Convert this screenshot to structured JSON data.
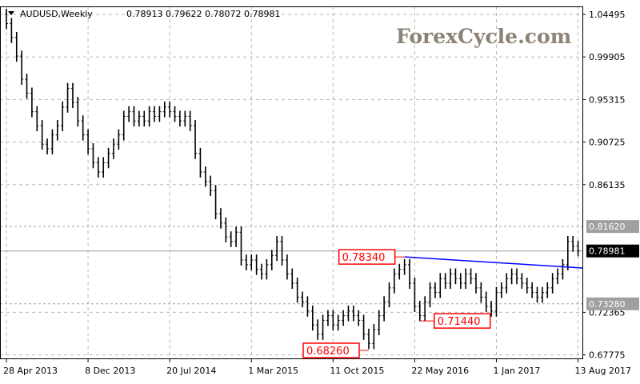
{
  "header": {
    "symbol": "AUDUSD,Weekly",
    "ohlc": "0.78913 0.79622 0.78072 0.78981",
    "menu_icon": "triangle-down-icon"
  },
  "watermark": "ForexCycle.com",
  "colors": {
    "bars": "#000000",
    "trendline": "#0000ff",
    "annotation": "#ff0000",
    "level_label_bg": "#a0a0a0",
    "current_price_bg": "#000000",
    "grid": "#c0c0c0",
    "watermark": "#8c8276"
  },
  "chart_data": {
    "type": "ohlc",
    "title": "AUDUSD,Weekly",
    "ylim": [
      0.67775,
      1.04495
    ],
    "yticks": [
      "1.04495",
      "0.99905",
      "0.95315",
      "0.90725",
      "0.86135",
      "0.72365",
      "0.67775"
    ],
    "xtick_labels": [
      "28 Apr 2013",
      "8 Dec 2013",
      "20 Jul 2014",
      "1 Mar 2015",
      "11 Oct 2015",
      "22 May 2016",
      "1 Jan 2017",
      "13 Aug 2017"
    ],
    "grid": true,
    "bar_interval_weeks": 2,
    "closes": [
      1.035,
      1.02,
      1.0,
      0.975,
      0.96,
      0.94,
      0.925,
      0.905,
      0.9,
      0.915,
      0.925,
      0.945,
      0.965,
      0.95,
      0.93,
      0.915,
      0.9,
      0.885,
      0.875,
      0.885,
      0.895,
      0.905,
      0.915,
      0.935,
      0.94,
      0.93,
      0.935,
      0.93,
      0.94,
      0.935,
      0.94,
      0.945,
      0.94,
      0.935,
      0.93,
      0.935,
      0.925,
      0.895,
      0.875,
      0.865,
      0.855,
      0.83,
      0.82,
      0.805,
      0.8,
      0.81,
      0.78,
      0.775,
      0.78,
      0.77,
      0.765,
      0.775,
      0.785,
      0.8,
      0.78,
      0.765,
      0.755,
      0.74,
      0.735,
      0.725,
      0.71,
      0.7,
      0.715,
      0.72,
      0.71,
      0.715,
      0.72,
      0.725,
      0.72,
      0.715,
      0.7,
      0.69,
      0.705,
      0.72,
      0.735,
      0.75,
      0.765,
      0.77,
      0.775,
      0.755,
      0.73,
      0.72,
      0.735,
      0.75,
      0.745,
      0.76,
      0.755,
      0.765,
      0.76,
      0.755,
      0.765,
      0.76,
      0.75,
      0.74,
      0.73,
      0.725,
      0.745,
      0.75,
      0.76,
      0.765,
      0.76,
      0.755,
      0.75,
      0.745,
      0.74,
      0.745,
      0.75,
      0.76,
      0.765,
      0.775,
      0.8,
      0.795,
      0.79
    ],
    "levels": [
      {
        "value": 0.8162,
        "label": "0.81620"
      },
      {
        "value": 0.7328,
        "label": "0.73280"
      }
    ],
    "current_price": {
      "value": 0.78981,
      "label": "0.78981"
    },
    "trendline": {
      "from_week": 156,
      "from_value": 0.7834,
      "to_week": 226,
      "to_value": 0.7715
    },
    "annotations": [
      {
        "label": "0.78340",
        "week": 156,
        "value": 0.7834
      },
      {
        "label": "0.71440",
        "week": 162,
        "value": 0.7144
      },
      {
        "label": "0.68260",
        "week": 142,
        "value": 0.6826
      }
    ]
  }
}
